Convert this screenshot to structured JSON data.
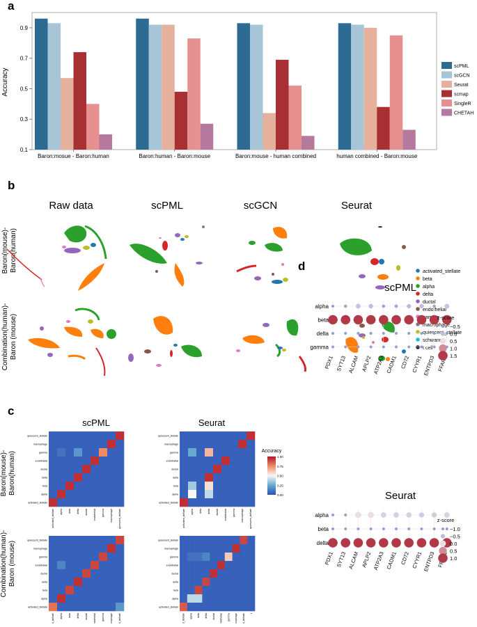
{
  "panels": {
    "a": "a",
    "b": "b",
    "c": "c",
    "d": "d"
  },
  "colors": {
    "scPML": "#2d6b93",
    "scGCN": "#a6c5d6",
    "Seurat": "#e6b19c",
    "scmap": "#a83034",
    "SingleR": "#e69090",
    "CHETAH": "#b5799d",
    "activated_stellate": "#1f77b4",
    "beta": "#ff7f0e",
    "alpha": "#2ca02c",
    "delta": "#d62728",
    "ductal": "#9467bd",
    "endothelial": "#8c564b",
    "gamma": "#e377c2",
    "macrophage": "#7f7f7f",
    "quiescent_stellate": "#bcbd22",
    "schwann": "#17becf",
    "t_cell": "#222222"
  },
  "chart_data": [
    {
      "id": "a",
      "type": "bar",
      "ylabel": "Accuracy",
      "ylim": [
        0.1,
        1.0
      ],
      "yticks": [
        "0.1",
        "0.3",
        "0.5",
        "0.7",
        "0.9"
      ],
      "ytick_values": [
        0.1,
        0.3,
        0.5,
        0.7,
        0.9
      ],
      "categories": [
        "Baron:mosue - Baron:human",
        "Baron:human - Baron:mouse",
        "Baron:mouse - human combined",
        "human combined - Baron:mouse"
      ],
      "legend": [
        "scPML",
        "scGCN",
        "Seurat",
        "scmap",
        "SingleR",
        "CHETAH"
      ],
      "series": [
        {
          "name": "scPML",
          "values": [
            0.96,
            0.96,
            0.93,
            0.93
          ]
        },
        {
          "name": "scGCN",
          "values": [
            0.93,
            0.92,
            0.92,
            0.92
          ]
        },
        {
          "name": "Seurat",
          "values": [
            0.57,
            0.92,
            0.34,
            0.9
          ]
        },
        {
          "name": "scmap",
          "values": [
            0.74,
            0.48,
            0.69,
            0.38
          ]
        },
        {
          "name": "SingleR",
          "values": [
            0.4,
            0.83,
            0.52,
            0.85
          ]
        },
        {
          "name": "CHETAH",
          "values": [
            0.2,
            0.27,
            0.19,
            0.23
          ]
        }
      ]
    },
    {
      "id": "b",
      "type": "scatter",
      "columns": [
        "Raw data",
        "scPML",
        "scGCN",
        "Seurat"
      ],
      "rows": [
        "Baron(mouse)-Baron(human)",
        "Combination(human)-Baron (mouse)"
      ],
      "row_labels": [
        [
          "Baron(mouse)-",
          "Baron(human)"
        ],
        [
          "Combination(human)-",
          "Baron (mouse)"
        ]
      ],
      "legend": [
        "activated_stellate",
        "beta",
        "alpha",
        "delta",
        "ductal",
        "endothelial",
        "gamma",
        "macrophage",
        "quiescent_stellate",
        "schwann",
        "t_cell"
      ],
      "legend_text": [
        "activated_stellate",
        "beta",
        "alpha",
        "delta",
        "ductal",
        "endothelial",
        "gamma",
        "macrophage",
        "quiescent_stellate",
        "schwann",
        "t cell"
      ]
    },
    {
      "id": "c",
      "type": "heatmap",
      "titles": [
        "scPML",
        "Seurat"
      ],
      "row_labels": [
        [
          "Baron(mouse)-",
          "Baron(human)"
        ],
        [
          "Combination(human)-",
          "Baron (mouse)"
        ]
      ],
      "colorbar_title": "Accuracy",
      "colorbar_ticks": [
        "1.00",
        "0.75",
        "0.50",
        "0.25",
        "0.00"
      ],
      "ylabels_top": [
        "quiescent_stellate",
        "macrophage",
        "gamma",
        "endothelial",
        "ductal",
        "delta",
        "beta",
        "alpha",
        "activated_stellate"
      ],
      "xlabels_top": [
        "activated_stellate",
        "alpha",
        "beta",
        "delta",
        "ductal",
        "endothelial",
        "gamma",
        "macrophage",
        "quiescent_stellate"
      ],
      "ylabels_bottom": [
        "quiescent_stellate",
        "macrophage",
        "gamma",
        "endothelial",
        "ductal",
        "delta",
        "beta",
        "alpha",
        "activated_stellate"
      ],
      "xlabels_bottom": [
        "activated_stellate",
        "alpha",
        "beta",
        "delta",
        "ductal",
        "endothelial",
        "gamma",
        "macrophage",
        "quiescent_stellate"
      ],
      "xlabels_bottom_seurat": [
        "activated_stellate",
        "alpha",
        "beta",
        "delta",
        "ductal",
        "endothelial",
        "gamma",
        "macrophage",
        "quiescent_stellate",
        "t"
      ],
      "matrices": {
        "scPML_top": [
          [
            0.05,
            0.05,
            0.05,
            0.05,
            0.05,
            0.05,
            0.05,
            0.05,
            0.95
          ],
          [
            0.05,
            0.05,
            0.05,
            0.05,
            0.05,
            0.05,
            0.05,
            0.95,
            0.05
          ],
          [
            0.05,
            0.1,
            0.05,
            0.2,
            0.05,
            0.05,
            0.75,
            0.05,
            0.05
          ],
          [
            0.05,
            0.05,
            0.05,
            0.05,
            0.05,
            0.95,
            0.05,
            0.05,
            0.05
          ],
          [
            0.05,
            0.05,
            0.05,
            0.05,
            0.95,
            0.05,
            0.05,
            0.05,
            0.05
          ],
          [
            0.05,
            0.05,
            0.05,
            0.95,
            0.05,
            0.05,
            0.05,
            0.05,
            0.05
          ],
          [
            0.05,
            0.05,
            0.95,
            0.05,
            0.05,
            0.05,
            0.05,
            0.05,
            0.05
          ],
          [
            0.05,
            0.95,
            0.05,
            0.05,
            0.05,
            0.05,
            0.05,
            0.05,
            0.05
          ],
          [
            0.95,
            0.05,
            0.05,
            0.05,
            0.05,
            0.05,
            0.05,
            0.05,
            0.05
          ]
        ],
        "seurat_top": [
          [
            0.05,
            0.05,
            0.05,
            0.05,
            0.05,
            0.05,
            0.05,
            0.05,
            0.95
          ],
          [
            0.05,
            0.05,
            0.05,
            0.05,
            0.05,
            0.05,
            0.05,
            0.95,
            0.05
          ],
          [
            0.05,
            0.25,
            0.05,
            0.65,
            0.05,
            0.05,
            0.05,
            0.05,
            0.05
          ],
          [
            0.05,
            0.05,
            0.05,
            0.05,
            0.05,
            0.95,
            0.05,
            0.05,
            0.05
          ],
          [
            0.05,
            0.05,
            0.05,
            0.05,
            0.95,
            0.05,
            0.05,
            0.05,
            0.05
          ],
          [
            0.05,
            0.05,
            0.05,
            0.95,
            0.05,
            0.05,
            0.05,
            0.05,
            0.05
          ],
          [
            0.05,
            0.35,
            0.05,
            0.55,
            0.05,
            0.05,
            0.05,
            0.05,
            0.05
          ],
          [
            0.05,
            0.5,
            0.05,
            0.4,
            0.05,
            0.05,
            0.05,
            0.05,
            0.05
          ],
          [
            0.95,
            0.05,
            0.05,
            0.05,
            0.05,
            0.05,
            0.05,
            0.05,
            0.05
          ]
        ],
        "scPML_bottom": [
          [
            0.05,
            0.05,
            0.05,
            0.05,
            0.05,
            0.05,
            0.05,
            0.05,
            0.9
          ],
          [
            0.05,
            0.05,
            0.05,
            0.05,
            0.05,
            0.05,
            0.05,
            0.95,
            0.05
          ],
          [
            0.05,
            0.05,
            0.05,
            0.05,
            0.05,
            0.05,
            0.9,
            0.05,
            0.05
          ],
          [
            0.05,
            0.15,
            0.05,
            0.05,
            0.05,
            0.9,
            0.05,
            0.05,
            0.05
          ],
          [
            0.05,
            0.05,
            0.05,
            0.05,
            0.9,
            0.05,
            0.05,
            0.05,
            0.05
          ],
          [
            0.05,
            0.05,
            0.05,
            0.95,
            0.05,
            0.05,
            0.05,
            0.05,
            0.05
          ],
          [
            0.05,
            0.05,
            0.9,
            0.05,
            0.05,
            0.05,
            0.05,
            0.05,
            0.05
          ],
          [
            0.05,
            0.95,
            0.05,
            0.05,
            0.05,
            0.05,
            0.05,
            0.05,
            0.05
          ],
          [
            0.8,
            0.05,
            0.05,
            0.05,
            0.05,
            0.05,
            0.05,
            0.05,
            0.2
          ]
        ],
        "seurat_bottom": [
          [
            0.05,
            0.05,
            0.05,
            0.05,
            0.05,
            0.05,
            0.05,
            0.05,
            0.9,
            0.05
          ],
          [
            0.05,
            0.05,
            0.05,
            0.05,
            0.05,
            0.05,
            0.05,
            0.95,
            0.05,
            0.05
          ],
          [
            0.05,
            0.1,
            0.1,
            0.15,
            0.05,
            0.05,
            0.6,
            0.05,
            0.05,
            0.05
          ],
          [
            0.05,
            0.05,
            0.05,
            0.05,
            0.05,
            0.95,
            0.05,
            0.05,
            0.05,
            0.05
          ],
          [
            0.05,
            0.05,
            0.05,
            0.05,
            0.95,
            0.05,
            0.05,
            0.05,
            0.05,
            0.05
          ],
          [
            0.05,
            0.05,
            0.05,
            0.9,
            0.05,
            0.05,
            0.05,
            0.05,
            0.05,
            0.05
          ],
          [
            0.05,
            0.05,
            0.9,
            0.05,
            0.05,
            0.05,
            0.05,
            0.05,
            0.05,
            0.05
          ],
          [
            0.05,
            0.4,
            0.4,
            0.05,
            0.05,
            0.05,
            0.05,
            0.05,
            0.05,
            0.05
          ],
          [
            0.85,
            0.05,
            0.05,
            0.05,
            0.05,
            0.05,
            0.05,
            0.05,
            0.05,
            0.05
          ]
        ]
      }
    },
    {
      "id": "d",
      "type": "scatter",
      "titles": [
        "scPML",
        "Seurat"
      ],
      "genes": [
        "PDX1",
        "SYT13",
        "ALCAM",
        "APLP2",
        "ATP2A3",
        "CADM1",
        "CD72",
        "CYYR1",
        "ENTPD3",
        "FFAR1"
      ],
      "rows_top": [
        "alpha",
        "beta",
        "delta",
        "gamma"
      ],
      "rows_bottom": [
        "alpha",
        "beta",
        "delta"
      ],
      "legend_title": "z-score",
      "legend_top": [
        "−0.5",
        "0.0",
        "0.5",
        "1.0",
        "1.5"
      ],
      "legend_top_values": [
        -0.5,
        0.0,
        0.5,
        1.0,
        1.5
      ],
      "legend_bottom": [
        "−1.0",
        "−0.5",
        "0.0",
        "0.5",
        "1.0"
      ],
      "legend_bottom_values": [
        -1.0,
        -0.5,
        0.0,
        0.5,
        1.0
      ],
      "zscores_top": [
        [
          -0.5,
          -0.4,
          0.1,
          0.0,
          -0.4,
          -0.3,
          -0.1,
          0.0,
          -0.4,
          0.1
        ],
        [
          1.5,
          1.5,
          1.5,
          1.5,
          1.5,
          1.5,
          1.5,
          1.5,
          1.5,
          1.5
        ],
        [
          -0.5,
          -0.5,
          -0.5,
          -0.5,
          -0.5,
          -0.5,
          -0.5,
          -0.5,
          -0.5,
          -0.5
        ],
        [
          -0.5,
          -0.5,
          -0.5,
          -0.5,
          -0.5,
          -0.5,
          -0.5,
          -0.5,
          -0.5,
          -0.5
        ]
      ],
      "zscores_bottom": [
        [
          -1.0,
          -1.0,
          0.0,
          0.0,
          -0.2,
          -0.2,
          -0.2,
          -0.3,
          -0.3,
          -0.2
        ],
        [
          -1.0,
          -1.0,
          -1.0,
          -1.0,
          -1.0,
          -1.0,
          -1.0,
          -1.0,
          -1.0,
          -1.0
        ],
        [
          1.0,
          1.0,
          1.0,
          1.0,
          1.0,
          1.0,
          1.0,
          1.0,
          1.0,
          1.0
        ]
      ]
    }
  ]
}
